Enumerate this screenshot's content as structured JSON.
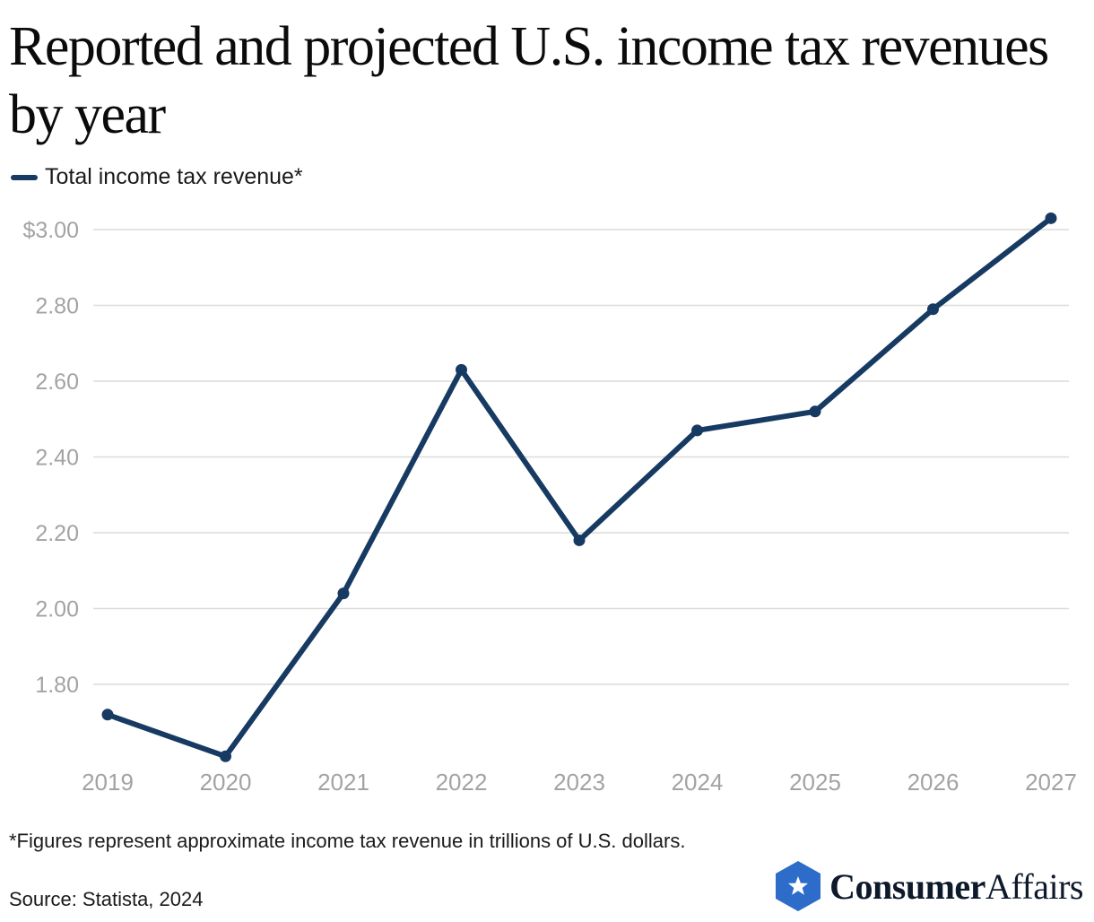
{
  "title": "Reported and projected U.S. income tax revenues by year",
  "legend": {
    "label": "Total income tax revenue*"
  },
  "colors": {
    "line": "#173a63",
    "grid": "#dcdcdc",
    "tick": "#a3a3a3",
    "brand": "#2d6cc9"
  },
  "chart_data": {
    "type": "line",
    "x": [
      "2019",
      "2020",
      "2021",
      "2022",
      "2023",
      "2024",
      "2025",
      "2026",
      "2027"
    ],
    "series": [
      {
        "name": "Total income tax revenue*",
        "values": [
          1.72,
          1.61,
          2.04,
          2.63,
          2.18,
          2.47,
          2.52,
          2.79,
          3.03
        ]
      }
    ],
    "y_ticks": [
      "$3.00",
      "2.80",
      "2.60",
      "2.40",
      "2.20",
      "2.00",
      "1.80"
    ],
    "y_tick_values": [
      3.0,
      2.8,
      2.6,
      2.4,
      2.2,
      2.0,
      1.8
    ],
    "ylim": [
      1.6,
      3.05
    ],
    "grid": true,
    "legend_position": "top-left"
  },
  "footnote": "*Figures represent approximate income tax revenue in trillions of U.S. dollars.",
  "source": "Source: Statista, 2024",
  "brand": {
    "icon": "star-shield-icon",
    "name_bold": "Consumer",
    "name_regular": "Affairs"
  }
}
